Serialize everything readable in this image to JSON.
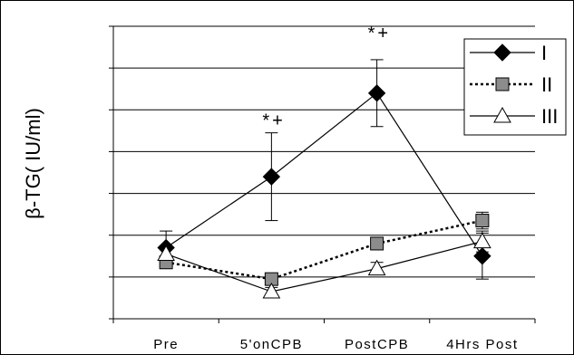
{
  "chart_data": {
    "type": "line",
    "ylabel": "β-TG( IU/ml)",
    "categories": [
      "Pre",
      "5'onCPB",
      "PostCPB",
      "4Hrs Post"
    ],
    "ylim": [
      0,
      7
    ],
    "grid": true,
    "legend_placement": "top-right",
    "series": [
      {
        "name": "I",
        "values": [
          1.7,
          3.4,
          5.4,
          1.5
        ],
        "errors": [
          0.4,
          1.05,
          0.8,
          0.55
        ],
        "line_style": "solid",
        "marker": "diamond",
        "marker_color": "#000000"
      },
      {
        "name": "II",
        "values": [
          1.35,
          0.95,
          1.8,
          2.35
        ],
        "errors": [
          0.15,
          0.12,
          0.15,
          0.2
        ],
        "line_style": "dotted",
        "marker": "square",
        "marker_color": "#8c8c8c"
      },
      {
        "name": "III",
        "values": [
          1.55,
          0.65,
          1.2,
          1.85
        ],
        "errors": [
          0.15,
          0.1,
          0.15,
          0.25
        ],
        "line_style": "solid",
        "marker": "triangle",
        "marker_color": "#ffffff"
      }
    ],
    "annotations": [
      {
        "text": "*+",
        "category_index": 1,
        "y": 4.6
      },
      {
        "text": "*+",
        "category_index": 2,
        "y": 6.7
      }
    ]
  }
}
